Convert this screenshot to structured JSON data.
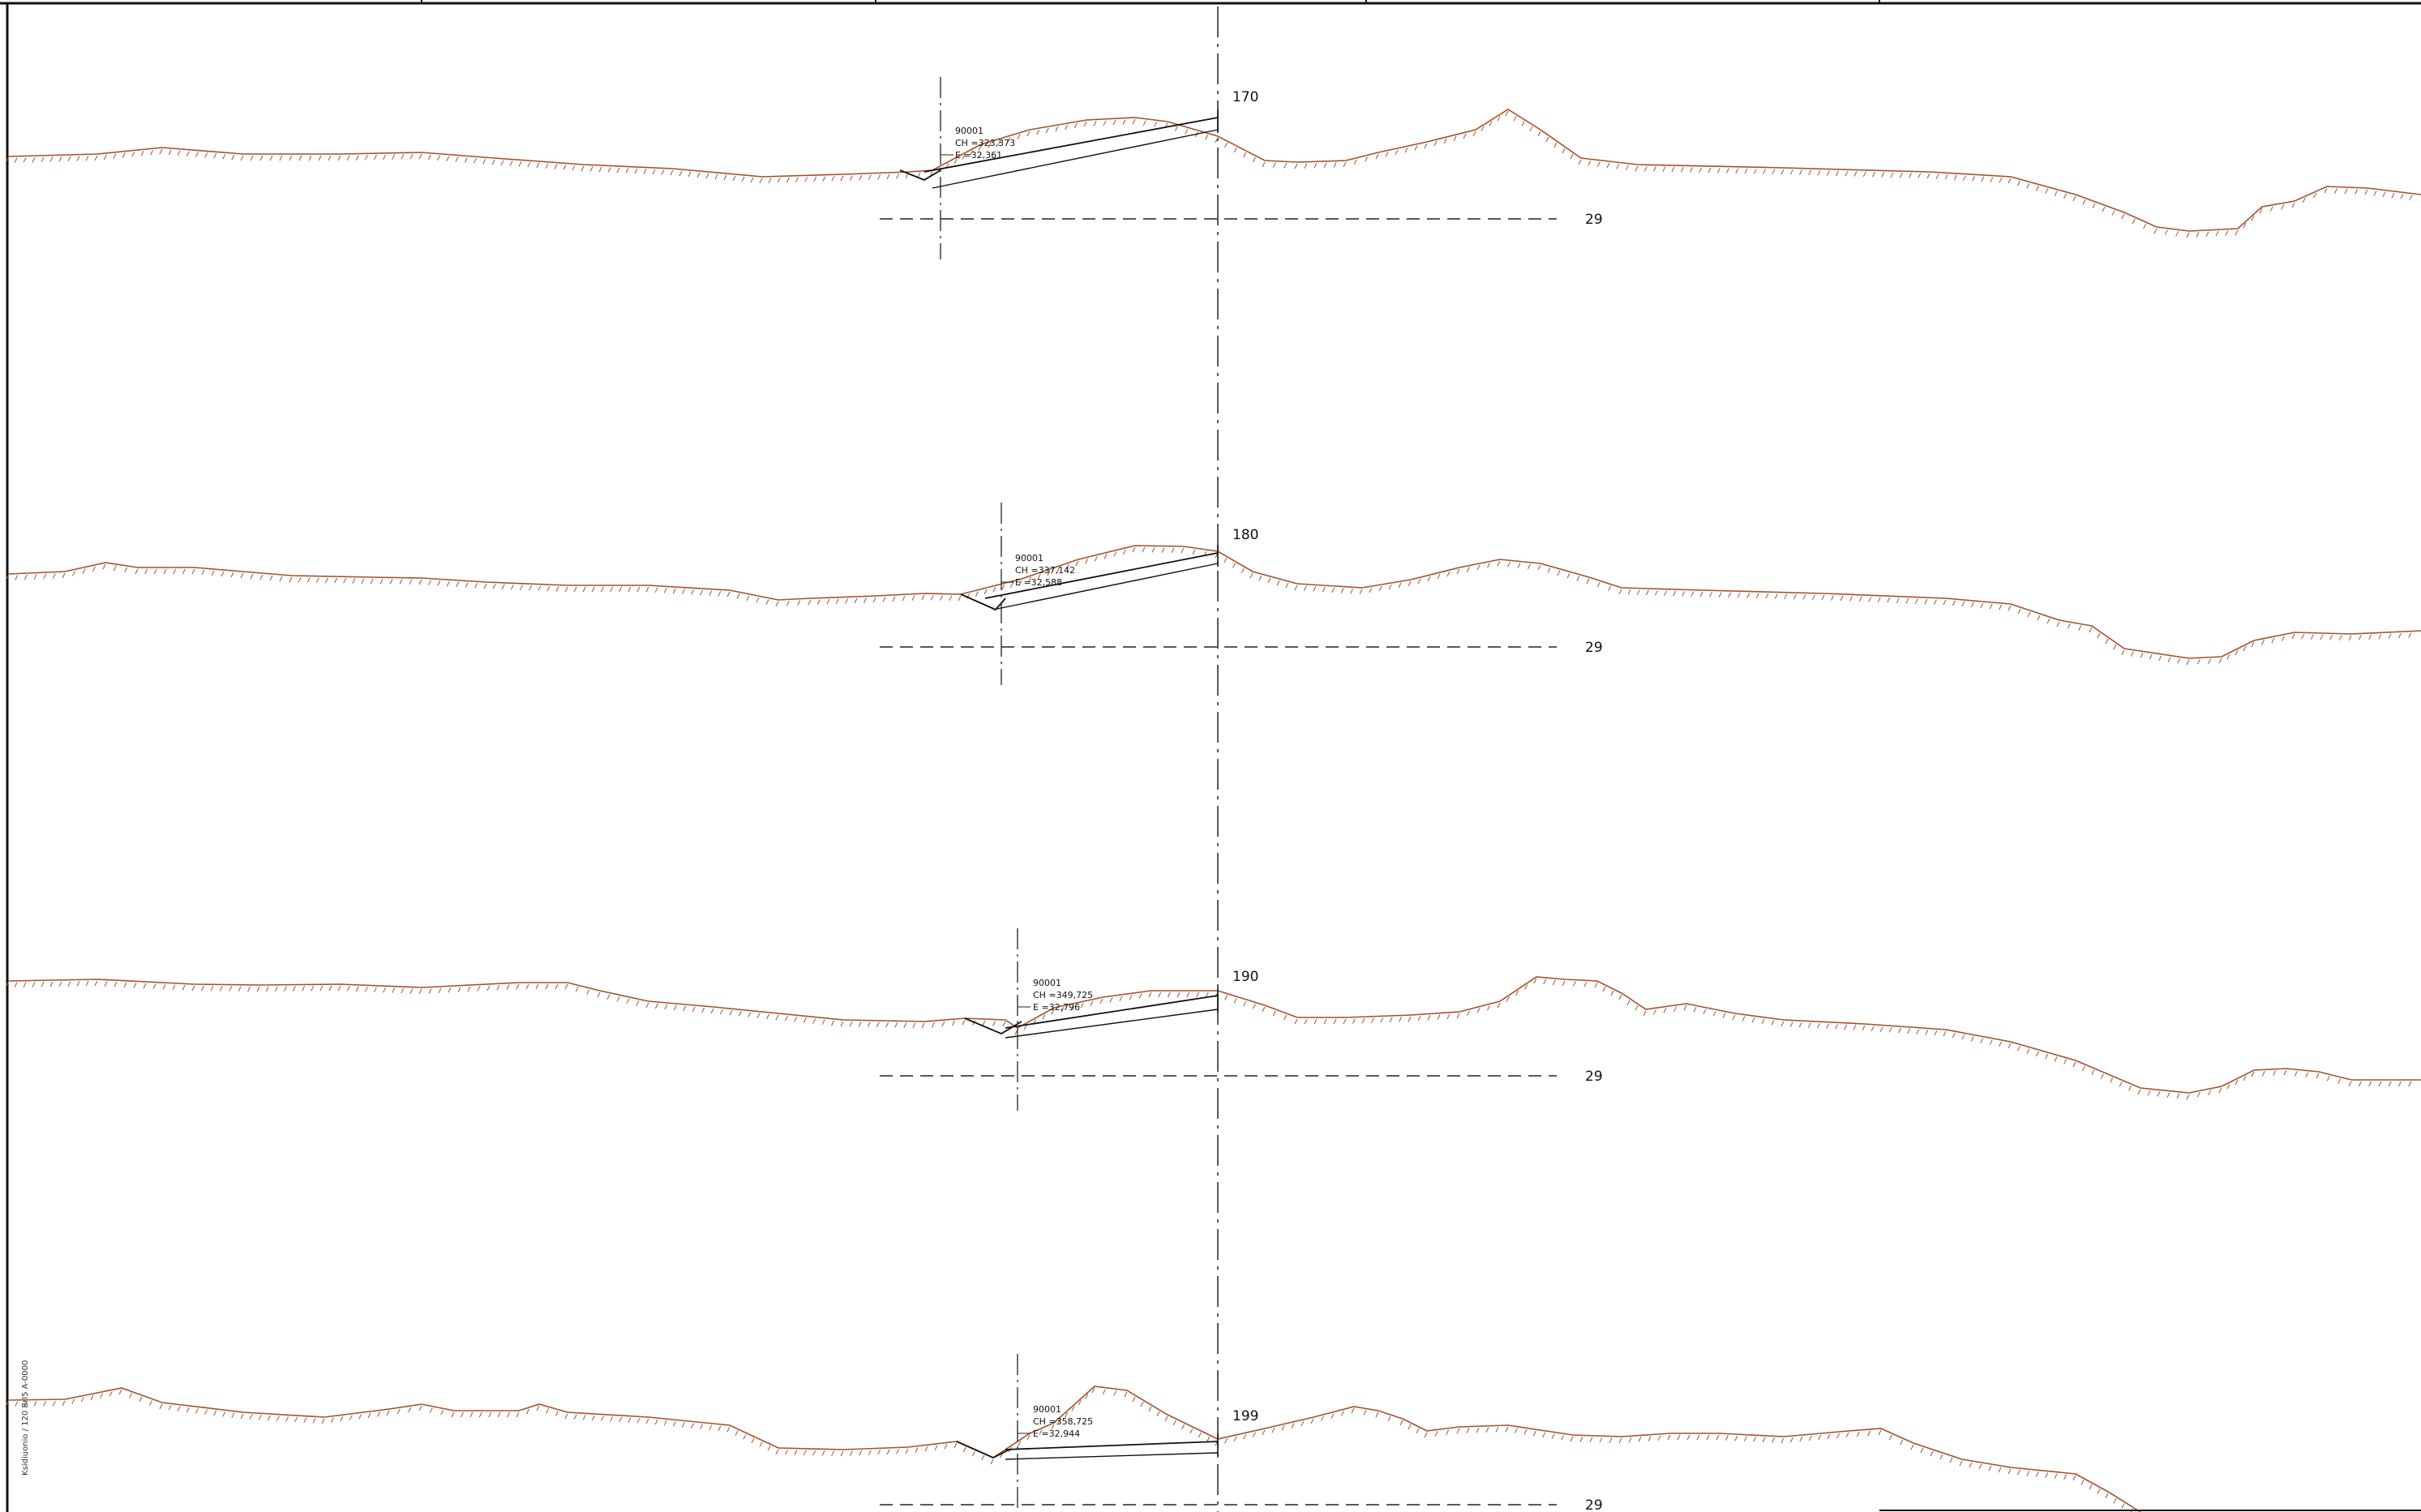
{
  "sheet": {
    "side_note": "Ksidiuonio / 120 Brl5     A-0000"
  },
  "colors": {
    "terrain": "#a0522d",
    "line": "#111111",
    "axis": "#222222"
  },
  "sections": [
    {
      "station": "170",
      "level": "29",
      "annotation": [
        "90001",
        "CH =323,373",
        "E =32,361"
      ]
    },
    {
      "station": "180",
      "level": "29",
      "annotation": [
        "90001",
        "CH =337,142",
        "E =32,588"
      ]
    },
    {
      "station": "190",
      "level": "29",
      "annotation": [
        "90001",
        "CH =349,725",
        "E =32,796"
      ]
    },
    {
      "station": "199",
      "level": "29",
      "annotation": [
        "90001",
        "CH =358,725",
        "E =32,944"
      ]
    }
  ]
}
